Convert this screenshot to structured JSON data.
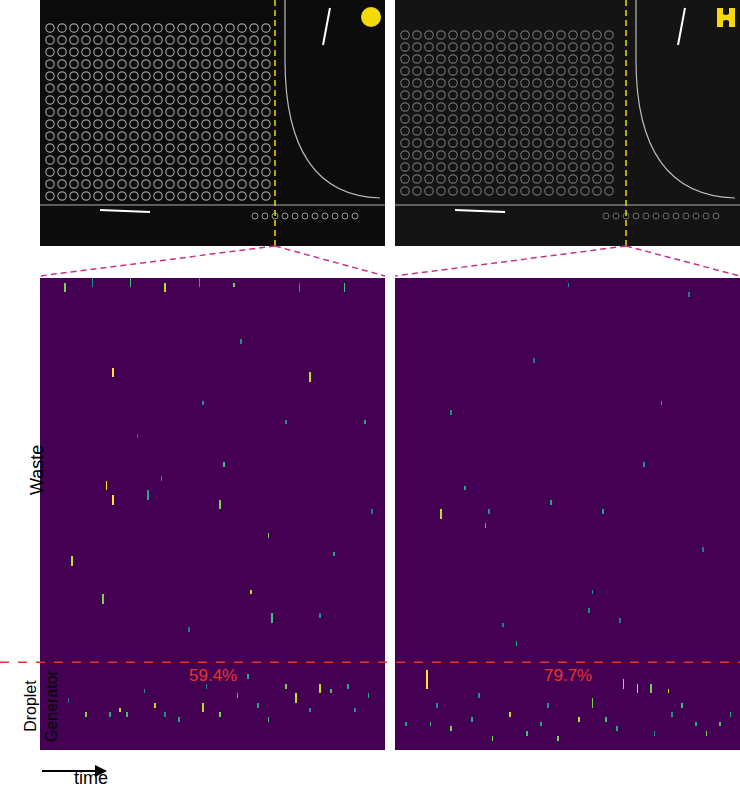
{
  "chart_data": [
    {
      "type": "heatmap",
      "xlim": [
        0,
        100
      ],
      "ylim": [
        0,
        100
      ],
      "zlim": [
        0,
        1
      ],
      "tick_labels": false,
      "region_boundary": 18.6,
      "percentage": {
        "value": 59.4,
        "label": "59.4%"
      },
      "events": [
        [
          21,
          79,
          81,
          1
        ],
        [
          78,
          78,
          80,
          0.9
        ],
        [
          19,
          55,
          57,
          1
        ],
        [
          21,
          52,
          54,
          1
        ],
        [
          52,
          51,
          53,
          0.8
        ],
        [
          31,
          53,
          55,
          0.6
        ],
        [
          53,
          60,
          61,
          0.7
        ],
        [
          9,
          39,
          41,
          0.9
        ],
        [
          66,
          45,
          46,
          0.8
        ],
        [
          67,
          27,
          29,
          0.7
        ],
        [
          18,
          31,
          33,
          0.8
        ],
        [
          61,
          33,
          34,
          0.9
        ],
        [
          7,
          97,
          99,
          0.8
        ],
        [
          15,
          98,
          100,
          0.5
        ],
        [
          26,
          98,
          100,
          0.7
        ],
        [
          36,
          97,
          99,
          0.9
        ],
        [
          46,
          98,
          100,
          0.6
        ],
        [
          56,
          98,
          99,
          0.8
        ],
        [
          75,
          97,
          99,
          0.5
        ],
        [
          88,
          97,
          99,
          0.7
        ],
        [
          47,
          73,
          74,
          0.5
        ],
        [
          94,
          69,
          70,
          0.6
        ],
        [
          35,
          57,
          58,
          0.5
        ],
        [
          71,
          69,
          70,
          0.5
        ],
        [
          81,
          28,
          29,
          0.5
        ],
        [
          96,
          50,
          51,
          0.4
        ],
        [
          58,
          86,
          87,
          0.5
        ],
        [
          43,
          25,
          26,
          0.4
        ],
        [
          85,
          41,
          42,
          0.6
        ],
        [
          28,
          66,
          67,
          0.4
        ],
        [
          13,
          7,
          8,
          0.8
        ],
        [
          20,
          7,
          8,
          0.6
        ],
        [
          23,
          8,
          9,
          0.9
        ],
        [
          25,
          7,
          8,
          0.7
        ],
        [
          33,
          9,
          10,
          0.9
        ],
        [
          40,
          6,
          7,
          0.6
        ],
        [
          47,
          8,
          10,
          0.9
        ],
        [
          52,
          7,
          8,
          0.8
        ],
        [
          57,
          11,
          12,
          0.7
        ],
        [
          63,
          9,
          10,
          0.6
        ],
        [
          71,
          13,
          14,
          0.8
        ],
        [
          74,
          10,
          12,
          0.9
        ],
        [
          81,
          12,
          14,
          0.9
        ],
        [
          84,
          12,
          13,
          0.7
        ],
        [
          89,
          13,
          14,
          0.6
        ],
        [
          91,
          8,
          9,
          0.5
        ],
        [
          30,
          12,
          13,
          0.5
        ],
        [
          66,
          6,
          7,
          0.7
        ],
        [
          78,
          8,
          9,
          0.5
        ],
        [
          95,
          11,
          12,
          0.6
        ],
        [
          36,
          7,
          8,
          0.5
        ],
        [
          8,
          10,
          11,
          0.4
        ],
        [
          60,
          15,
          16,
          0.6
        ],
        [
          48,
          13,
          14,
          0.5
        ]
      ]
    },
    {
      "type": "heatmap",
      "xlim": [
        0,
        100
      ],
      "ylim": [
        0,
        100
      ],
      "zlim": [
        0,
        1
      ],
      "tick_labels": false,
      "region_boundary": 18.6,
      "percentage": {
        "value": 79.7,
        "label": "79.7%"
      },
      "events": [
        [
          13,
          49,
          51,
          0.9
        ],
        [
          26,
          47,
          48,
          0.7
        ],
        [
          20,
          55,
          56,
          0.6
        ],
        [
          27,
          50,
          51,
          0.5
        ],
        [
          57,
          33,
          34,
          0.5
        ],
        [
          60,
          50,
          51,
          0.6
        ],
        [
          45,
          52,
          53,
          0.6
        ],
        [
          72,
          60,
          61,
          0.5
        ],
        [
          77,
          73,
          74,
          0.6
        ],
        [
          35,
          22,
          23,
          0.6
        ],
        [
          56,
          29,
          30,
          0.5
        ],
        [
          65,
          27,
          28,
          0.4
        ],
        [
          16,
          71,
          72,
          0.5
        ],
        [
          31,
          26,
          27,
          0.4
        ],
        [
          85,
          96,
          97,
          0.4
        ],
        [
          50,
          98,
          99,
          0.5
        ],
        [
          89,
          42,
          43,
          0.4
        ],
        [
          40,
          82,
          83,
          0.4
        ],
        [
          9,
          13,
          17,
          1
        ],
        [
          3,
          5,
          6,
          0.6
        ],
        [
          10,
          5,
          6,
          0.7
        ],
        [
          16,
          4,
          5,
          0.8
        ],
        [
          22,
          6,
          7,
          0.6
        ],
        [
          28,
          2,
          3,
          0.8
        ],
        [
          33,
          7,
          8,
          0.9
        ],
        [
          38,
          3,
          4,
          0.7
        ],
        [
          42,
          5,
          6,
          0.6
        ],
        [
          47,
          2,
          3,
          0.8
        ],
        [
          53,
          6,
          7,
          0.9
        ],
        [
          57,
          9,
          11,
          0.8
        ],
        [
          61,
          6,
          7,
          0.7
        ],
        [
          66,
          13,
          15,
          0.9
        ],
        [
          70,
          12,
          14,
          0.9
        ],
        [
          74,
          12,
          14,
          0.8
        ],
        [
          79,
          12,
          13,
          0.9
        ],
        [
          83,
          9,
          10,
          0.7
        ],
        [
          87,
          5,
          6,
          0.6
        ],
        [
          90,
          3,
          4,
          0.8
        ],
        [
          94,
          5,
          6,
          0.7
        ],
        [
          97,
          7,
          8,
          0.6
        ],
        [
          44,
          9,
          10,
          0.5
        ],
        [
          24,
          11,
          12,
          0.5
        ],
        [
          12,
          9,
          10,
          0.5
        ],
        [
          64,
          4,
          5,
          0.6
        ],
        [
          75,
          3,
          4,
          0.5
        ],
        [
          80,
          7,
          8,
          0.5
        ]
      ]
    }
  ],
  "labels": {
    "top_region": "Waste",
    "bottom_region": [
      "Droplet",
      "Generator"
    ],
    "x_arrow": "time"
  }
}
